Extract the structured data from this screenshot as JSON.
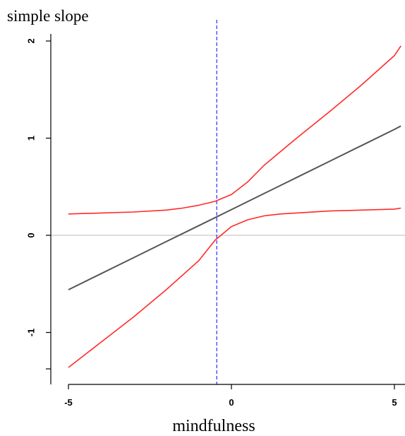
{
  "chart_data": {
    "type": "line",
    "title": "simple slope",
    "xlabel": "mindfulness",
    "ylabel": "",
    "xlim": [
      -5.15,
      5.2
    ],
    "ylim": [
      -1.5,
      2.05
    ],
    "x_ticks": [
      -5,
      0,
      5
    ],
    "x_tick_labels": [
      "-5",
      "0",
      "5"
    ],
    "y_ticks": [
      -1,
      0,
      1,
      2
    ],
    "y_tick_labels": [
      "-1",
      "0",
      "1",
      "2"
    ],
    "reference_lines": {
      "horizontal_zero": 0,
      "vertical_dashed_x": -0.45
    },
    "series": [
      {
        "color": "#555555",
        "x": [
          -5,
          -4,
          -3,
          -2,
          -1,
          0,
          1,
          2,
          3,
          4,
          5,
          5.2
        ],
        "y": [
          -0.56,
          -0.395,
          -0.23,
          -0.065,
          0.1,
          0.265,
          0.43,
          0.595,
          0.76,
          0.925,
          1.09,
          1.125
        ]
      },
      {
        "color": "#ff2a2a",
        "x": [
          -5,
          -4,
          -3,
          -2,
          -1.5,
          -1,
          -0.5,
          0,
          0.5,
          1,
          2,
          3,
          4,
          5,
          5.2
        ],
        "y": [
          0.22,
          0.23,
          0.24,
          0.26,
          0.28,
          0.31,
          0.35,
          0.42,
          0.55,
          0.72,
          1.0,
          1.27,
          1.55,
          1.85,
          1.95
        ]
      },
      {
        "color": "#ff2a2a",
        "x": [
          -5,
          -4,
          -3,
          -2,
          -1,
          -0.5,
          0,
          0.5,
          1,
          1.5,
          2,
          3,
          4,
          5,
          5.2
        ],
        "y": [
          -1.36,
          -1.1,
          -0.84,
          -0.56,
          -0.26,
          -0.05,
          0.09,
          0.16,
          0.2,
          0.22,
          0.23,
          0.25,
          0.26,
          0.27,
          0.28
        ]
      }
    ],
    "colors": {
      "axis": "#000000",
      "zero_line": "#bbbbbb",
      "dashed_line": "#3b3bff"
    }
  }
}
